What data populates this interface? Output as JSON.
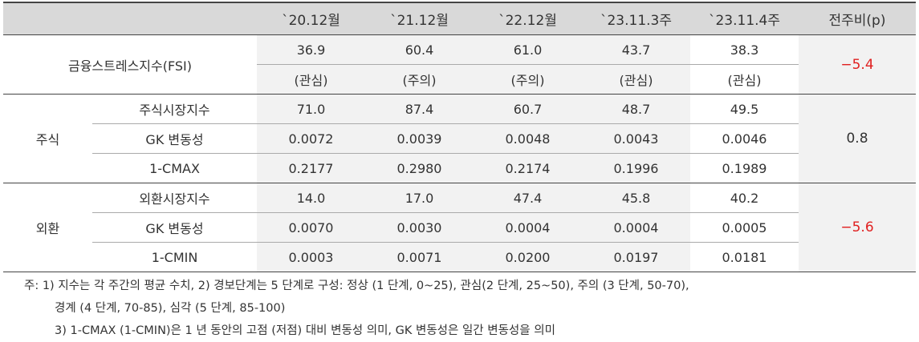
{
  "table": {
    "header": [
      "`20.12월",
      "`21.12월",
      "`22.12월",
      "`23.11.3주",
      "`23.11.4주",
      "전주비(p)"
    ],
    "fsi": {
      "label": "금융스트레스지수(FSI)",
      "values": [
        "36.9",
        "60.4",
        "61.0",
        "43.7",
        "38.3"
      ],
      "levels": [
        "(관심)",
        "(주의)",
        "(주의)",
        "(관심)",
        "(관심)"
      ],
      "change": "−5.4"
    },
    "groups": [
      {
        "label": "주식",
        "change": "0.8",
        "rows": [
          {
            "label": "주식시장지수",
            "values": [
              "71.0",
              "87.4",
              "60.7",
              "48.7",
              "49.5"
            ]
          },
          {
            "label": "GK 변동성",
            "values": [
              "0.0072",
              "0.0039",
              "0.0048",
              "0.0043",
              "0.0046"
            ]
          },
          {
            "label": "1-CMAX",
            "values": [
              "0.2177",
              "0.2980",
              "0.2174",
              "0.1996",
              "0.1989"
            ]
          }
        ]
      },
      {
        "label": "외환",
        "change": "−5.6",
        "rows": [
          {
            "label": "외환시장지수",
            "values": [
              "14.0",
              "17.0",
              "47.4",
              "45.8",
              "40.2"
            ]
          },
          {
            "label": "GK 변동성",
            "values": [
              "0.0070",
              "0.0030",
              "0.0004",
              "0.0004",
              "0.0005"
            ]
          },
          {
            "label": "1-CMIN",
            "values": [
              "0.0003",
              "0.0071",
              "0.0200",
              "0.0197",
              "0.0181"
            ]
          }
        ]
      }
    ]
  },
  "notes": [
    "주: 1) 지수는 각 주간의 평균 수치, 2) 경보단계는 5 단계로 구성: 정상 (1 단계, 0~25), 관심(2 단계, 25~50), 주의 (3 단계, 50-70),",
    "경계 (4 단계, 70-85), 심각 (5 단계, 85-100)",
    "3) 1-CMAX (1-CMIN)은 1 년 동안의 고점 (저점) 대비 변동성 의미, GK 변동성은 일간 변동성을 의미"
  ]
}
